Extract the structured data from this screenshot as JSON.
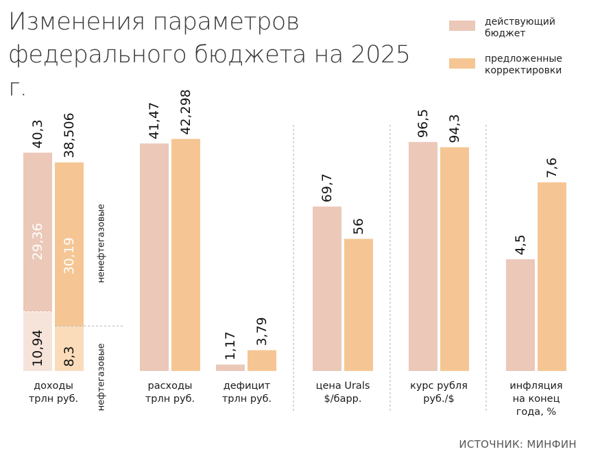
{
  "title": "Изменения параметров федерального бюджета на 2025 г.",
  "legend": [
    {
      "label": "действующий бюджет",
      "color": "#ebc8b8"
    },
    {
      "label": "предложенные корректировки",
      "color": "#f5c693"
    }
  ],
  "source": "ИСТОЧНИК: МИНФИН",
  "colors": {
    "current": "#ebc8b8",
    "proposed": "#f5c693",
    "current_light": "#f6e4da",
    "proposed_light": "#fadcba",
    "separator": "#bbbbbb",
    "inner_label": "#ffffff"
  },
  "chart_data": [
    {
      "type": "bar",
      "category": [
        "доходы",
        "трлн руб."
      ],
      "stacked": true,
      "series": [
        {
          "name": "действующий бюджет",
          "total": 40.3,
          "total_label": "40,3",
          "segments": [
            {
              "name": "нефтегазовые",
              "value": 10.94,
              "label": "10,94"
            },
            {
              "name": "ненефтегазовые",
              "value": 29.36,
              "label": "29,36"
            }
          ]
        },
        {
          "name": "предложенные корректировки",
          "total": 38.506,
          "total_label": "38,506",
          "segments": [
            {
              "name": "нефтегазовые",
              "value": 8.3,
              "label": "8,3"
            },
            {
              "name": "ненефтегазовые",
              "value": 30.19,
              "label": "30,19"
            }
          ]
        }
      ],
      "annotations": [
        "ненефтегазовые",
        "нефтегазовые"
      ]
    },
    {
      "type": "bar",
      "categories": [
        [
          "расходы",
          "трлн руб."
        ],
        [
          "дефицит",
          "трлн руб."
        ]
      ],
      "series": [
        {
          "name": "действующий бюджет",
          "values": [
            41.47,
            1.17
          ],
          "labels": [
            "41,47",
            "1,17"
          ]
        },
        {
          "name": "предложенные корректировки",
          "values": [
            42.298,
            3.79
          ],
          "labels": [
            "42,298",
            "3,79"
          ]
        }
      ]
    },
    {
      "type": "bar",
      "category": [
        "цена Urals",
        "$/барр."
      ],
      "series": [
        {
          "name": "действующий бюджет",
          "value": 69.7,
          "label": "69,7"
        },
        {
          "name": "предложенные корректировки",
          "value": 56,
          "label": "56"
        }
      ]
    },
    {
      "type": "bar",
      "category": [
        "курс рубля",
        "руб./$"
      ],
      "series": [
        {
          "name": "действующий бюджет",
          "value": 96.5,
          "label": "96,5"
        },
        {
          "name": "предложенные корректировки",
          "value": 94.3,
          "label": "94,3"
        }
      ]
    },
    {
      "type": "bar",
      "category": [
        "инфляция",
        "на конец",
        "года, %"
      ],
      "series": [
        {
          "name": "действующий бюджет",
          "value": 4.5,
          "label": "4,5"
        },
        {
          "name": "предложенные корректировки",
          "value": 7.6,
          "label": "7,6"
        }
      ]
    }
  ]
}
